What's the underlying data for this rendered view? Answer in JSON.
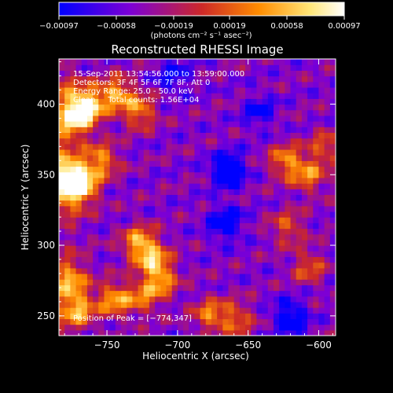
{
  "chart_data": {
    "type": "heatmap",
    "title": "Reconstructed RHESSI Image",
    "xlabel": "Heliocentric X (arcsec)",
    "ylabel": "Heliocentric Y (arcsec)",
    "xlim": [
      -784,
      -588
    ],
    "ylim": [
      236,
      432
    ],
    "xticks": [
      -750,
      -700,
      -650,
      -600
    ],
    "xtick_labels": [
      "−750",
      "−700",
      "−650",
      "−600"
    ],
    "yticks": [
      250,
      300,
      350,
      400
    ],
    "ytick_labels": [
      "250",
      "300",
      "350",
      "400"
    ],
    "colorbar": {
      "range": [
        -0.00097,
        0.00097
      ],
      "tick_values": [
        -0.00097,
        -0.00058,
        -0.00019,
        0.00019,
        0.00058,
        0.00097
      ],
      "tick_labels": [
        "−0.00097",
        "−0.00058",
        "−0.00019",
        "0.00019",
        "0.00058",
        "0.00097"
      ],
      "units": "(photons cm⁻² s⁻¹ asec⁻²)",
      "colors": [
        "#0000ff",
        "#7d00d5",
        "#cc2828",
        "#ff8c00",
        "#ffe678",
        "#ffffff"
      ]
    },
    "annotations": {
      "time": "15-Sep-2011 13:54:56.000 to 13:59:00.000",
      "detectors": "Detectors: 3F 4F 5F 6F 7F 8F, Att 0",
      "energy": "Energy Range: 25.0 - 50.0 keV",
      "algorithm": "Clean     Total counts: 1.56E+04",
      "peak": "Position of Peak = [−774,347]"
    },
    "peak": {
      "x": -774,
      "y": 347
    },
    "features": [
      {
        "x": -771,
        "y": 392,
        "amp": 1.0
      },
      {
        "x": -762,
        "y": 400,
        "amp": 0.9
      },
      {
        "x": -743,
        "y": 408,
        "amp": 0.85
      },
      {
        "x": -727,
        "y": 395,
        "amp": 0.75
      },
      {
        "x": -776,
        "y": 347,
        "amp": 1.2
      },
      {
        "x": -768,
        "y": 342,
        "amp": 0.9
      },
      {
        "x": -754,
        "y": 360,
        "amp": 0.8
      },
      {
        "x": -776,
        "y": 276,
        "amp": 0.8
      },
      {
        "x": -771,
        "y": 255,
        "amp": 0.9
      },
      {
        "x": -745,
        "y": 262,
        "amp": 0.85
      },
      {
        "x": -727,
        "y": 302,
        "amp": 0.9
      },
      {
        "x": -717,
        "y": 290,
        "amp": 0.8
      },
      {
        "x": -712,
        "y": 275,
        "amp": 0.75
      },
      {
        "x": -725,
        "y": 263,
        "amp": 0.6
      },
      {
        "x": -677,
        "y": 251,
        "amp": 0.7
      },
      {
        "x": -658,
        "y": 248,
        "amp": 0.6
      },
      {
        "x": -623,
        "y": 360,
        "amp": 0.75
      },
      {
        "x": -607,
        "y": 350,
        "amp": 0.7
      },
      {
        "x": -595,
        "y": 370,
        "amp": 0.55
      },
      {
        "x": -622,
        "y": 313,
        "amp": 0.55
      },
      {
        "x": -607,
        "y": 285,
        "amp": 0.55
      },
      {
        "x": -664,
        "y": 354,
        "amp": -0.8
      },
      {
        "x": -666,
        "y": 316,
        "amp": -0.7
      },
      {
        "x": -620,
        "y": 249,
        "amp": -0.7
      },
      {
        "x": -703,
        "y": 420,
        "amp": -0.45
      },
      {
        "x": -642,
        "y": 395,
        "amp": -0.45
      }
    ]
  }
}
